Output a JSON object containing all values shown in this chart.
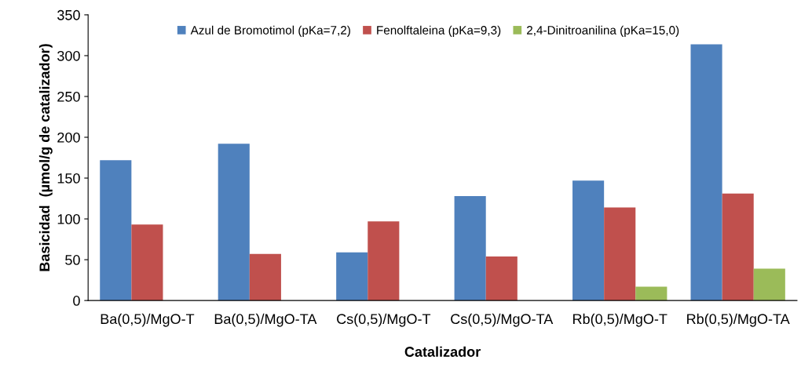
{
  "chart_data": {
    "type": "bar",
    "xlabel": "Catalizador",
    "ylabel": "Basicidad  (µmol/g de catalizador)",
    "categories": [
      "Ba(0,5)/MgO-T",
      "Ba(0,5)/MgO-TA",
      "Cs(0,5)/MgO-T",
      "Cs(0,5)/MgO-TA",
      "Rb(0,5)/MgO-T",
      "Rb(0,5)/MgO-TA"
    ],
    "series": [
      {
        "name": "Azul de Bromotimol (pKa=7,2)",
        "color": "#4f81bd",
        "values": [
          172,
          192,
          59,
          128,
          147,
          314
        ]
      },
      {
        "name": "Fenolftaleina (pKa=9,3)",
        "color": "#c0504d",
        "values": [
          93,
          57,
          97,
          54,
          114,
          131
        ]
      },
      {
        "name": "2,4-Dinitroanilina (pKa=15,0)",
        "color": "#9bbb59",
        "values": [
          0,
          0,
          0,
          0,
          17,
          39
        ]
      }
    ],
    "ylim": [
      0,
      350
    ],
    "yticks": [
      0,
      50,
      100,
      150,
      200,
      250,
      300,
      350
    ],
    "grid": false,
    "legend": "top"
  }
}
